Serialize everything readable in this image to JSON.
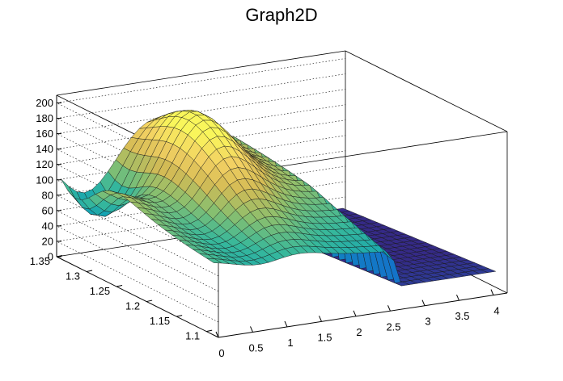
{
  "chart_data": {
    "type": "surface",
    "title": "Graph2D",
    "x_ticks": [
      "0",
      "0.5",
      "1",
      "1.5",
      "2",
      "2.5",
      "3",
      "3.5",
      "4"
    ],
    "y_ticks": [
      "1.1",
      "1.15",
      "1.2",
      "1.25",
      "1.3",
      "1.35"
    ],
    "z_ticks": [
      "0",
      "20",
      "40",
      "60",
      "80",
      "100",
      "120",
      "140",
      "160",
      "180",
      "200"
    ],
    "xlim": [
      0,
      4.2
    ],
    "ylim": [
      1.08,
      1.35
    ],
    "zlim": [
      0,
      210
    ],
    "grid": true,
    "colormap": [
      "#352a87",
      "#1473c8",
      "#0ea0b6",
      "#37b89b",
      "#8cbf6d",
      "#d4bb55",
      "#f3d163",
      "#f9f65b"
    ],
    "surface_description_values": {
      "plateau_left_z": 152,
      "peak_z": 185,
      "trough_z": 40,
      "drop_x": 2.6
    }
  }
}
